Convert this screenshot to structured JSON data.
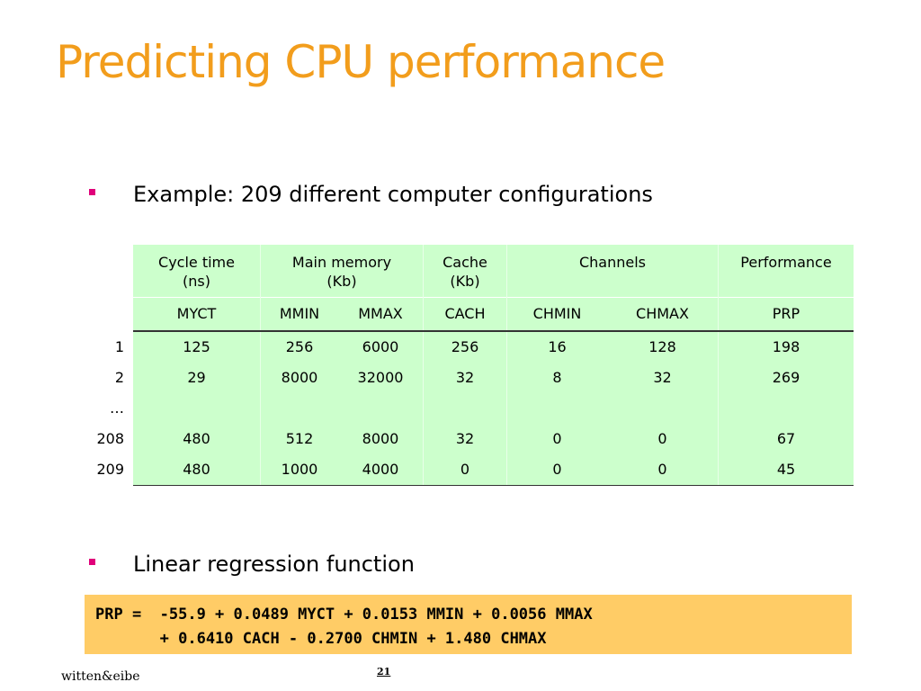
{
  "title": "Predicting CPU performance",
  "bullets": [
    "Example: 209 different computer configurations",
    "Linear regression function"
  ],
  "table": {
    "group_headers": [
      {
        "label_line1": "Cycle time",
        "label_line2": "(ns)"
      },
      {
        "label_line1": "Main memory",
        "label_line2": "(Kb)"
      },
      {
        "label_line1": "Cache",
        "label_line2": "(Kb)"
      },
      {
        "label_line1": "Channels",
        "label_line2": ""
      },
      {
        "label_line1": "Performance",
        "label_line2": ""
      }
    ],
    "columns": [
      "MYCT",
      "MMIN",
      "MMAX",
      "CACH",
      "CHMIN",
      "CHMAX",
      "PRP"
    ],
    "rows": [
      {
        "id": "1",
        "values": [
          "125",
          "256",
          "6000",
          "256",
          "16",
          "128",
          "198"
        ]
      },
      {
        "id": "2",
        "values": [
          "29",
          "8000",
          "32000",
          "32",
          "8",
          "32",
          "269"
        ]
      },
      {
        "id": "…",
        "values": [
          "",
          "",
          "",
          "",
          "",
          "",
          ""
        ]
      },
      {
        "id": "208",
        "values": [
          "480",
          "512",
          "8000",
          "32",
          "0",
          "0",
          "67"
        ]
      },
      {
        "id": "209",
        "values": [
          "480",
          "1000",
          "4000",
          "0",
          "0",
          "0",
          "45"
        ]
      }
    ]
  },
  "formula": {
    "line1": "PRP =  -55.9 + 0.0489 MYCT + 0.0153 MMIN + 0.0056 MMAX",
    "line2": "       + 0.6410 CACH - 0.2700 CHMIN + 1.480 CHMAX"
  },
  "footer": {
    "credit": "witten&eibe",
    "page_number": "21"
  },
  "colors": {
    "title": "#f29d1c",
    "bullet_marker": "#e0007a",
    "table_fill": "#ccffcc",
    "formula_fill": "#ffcc66"
  }
}
